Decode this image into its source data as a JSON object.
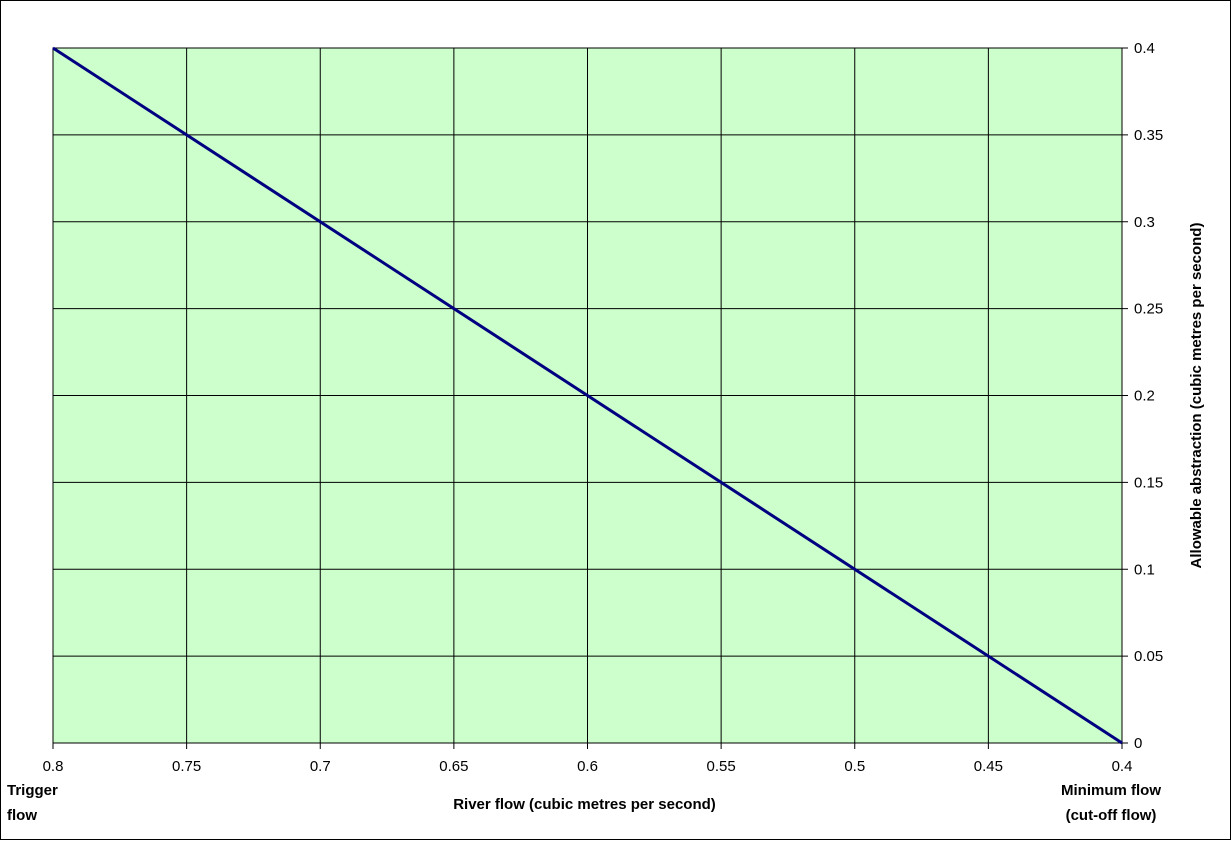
{
  "chart_data": {
    "type": "line",
    "title": "",
    "xlabel": "River flow (cubic metres per second)",
    "ylabel": "Allowable abstraction (cubic metres per second)",
    "x_reversed": true,
    "xlim": [
      0.4,
      0.8
    ],
    "ylim": [
      0,
      0.4
    ],
    "x_ticks": [
      "0.8",
      "0.75",
      "0.7",
      "0.65",
      "0.6",
      "0.55",
      "0.5",
      "0.45",
      "0.4"
    ],
    "y_ticks": [
      "0",
      "0.05",
      "0.1",
      "0.15",
      "0.2",
      "0.25",
      "0.3",
      "0.35",
      "0.4"
    ],
    "y_axis_position": "right",
    "grid": true,
    "plot_background": "#CCFFCC",
    "series": [
      {
        "color": "#000080",
        "x": [
          0.8,
          0.4
        ],
        "y": [
          0.4,
          0
        ]
      }
    ],
    "annotations": {
      "left": [
        "Trigger",
        "flow"
      ],
      "right": [
        "Minimum flow",
        "(cut-off flow)"
      ]
    }
  }
}
